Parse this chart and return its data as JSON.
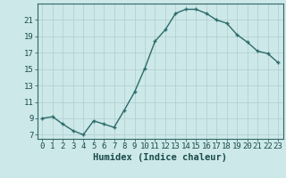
{
  "x": [
    0,
    1,
    2,
    3,
    4,
    5,
    6,
    7,
    8,
    9,
    10,
    11,
    12,
    13,
    14,
    15,
    16,
    17,
    18,
    19,
    20,
    21,
    22,
    23
  ],
  "y": [
    9.0,
    9.2,
    8.3,
    7.5,
    7.0,
    8.7,
    8.3,
    7.9,
    10.0,
    12.2,
    15.1,
    18.4,
    19.8,
    21.8,
    22.3,
    22.3,
    21.8,
    21.0,
    20.6,
    19.2,
    18.3,
    17.2,
    16.9,
    15.8
  ],
  "line_color": "#2d6b6b",
  "marker": "+",
  "marker_size": 3.5,
  "marker_linewidth": 1.0,
  "bg_color": "#cce8e8",
  "grid_color_major": "#b0cccc",
  "grid_color_minor": "#c4dcdc",
  "spine_color": "#336666",
  "xlabel": "Humidex (Indice chaleur)",
  "xlim": [
    -0.5,
    23.5
  ],
  "ylim": [
    6.5,
    23.0
  ],
  "yticks": [
    7,
    9,
    11,
    13,
    15,
    17,
    19,
    21
  ],
  "xticks": [
    0,
    1,
    2,
    3,
    4,
    5,
    6,
    7,
    8,
    9,
    10,
    11,
    12,
    13,
    14,
    15,
    16,
    17,
    18,
    19,
    20,
    21,
    22,
    23
  ],
  "xlabel_fontsize": 7.5,
  "tick_fontsize": 6.5,
  "line_width": 1.0,
  "fig_width": 3.2,
  "fig_height": 2.0,
  "dpi": 100
}
